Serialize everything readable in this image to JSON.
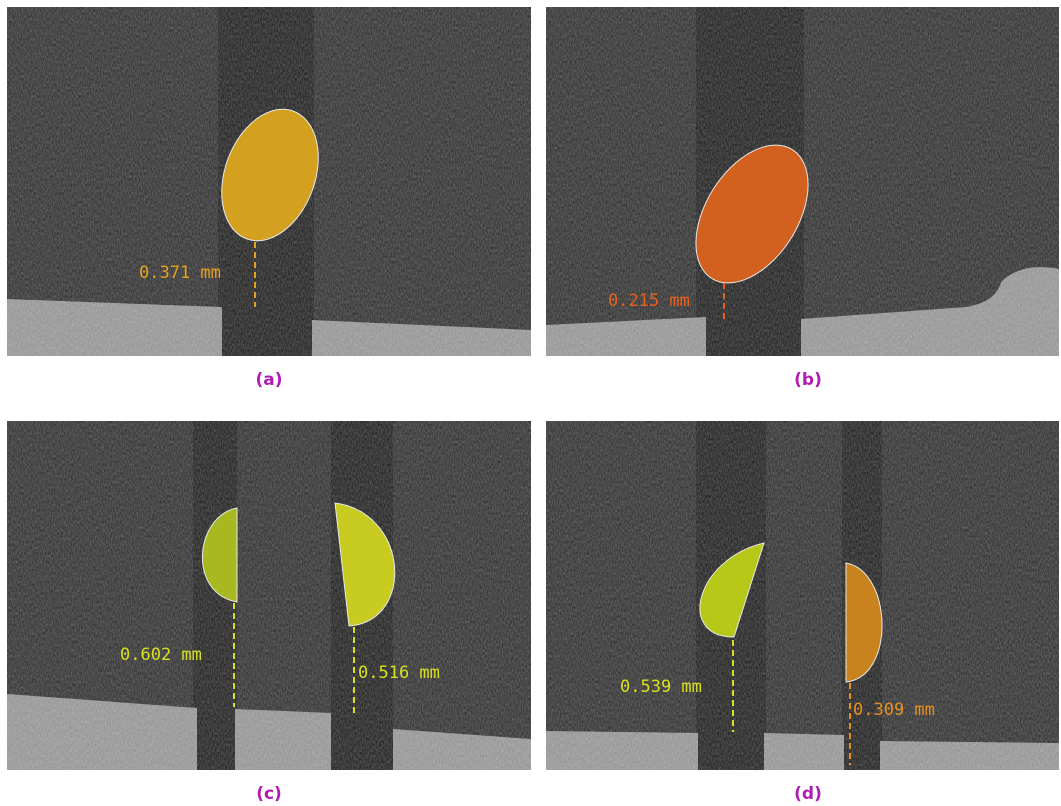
{
  "panels": [
    {
      "caption": "(a)",
      "measurements": [
        "0.371 mm"
      ]
    },
    {
      "caption": "(b)",
      "measurements": [
        "0.215 mm"
      ]
    },
    {
      "caption": "(c)",
      "measurements": [
        "0.602 mm",
        "0.516 mm"
      ]
    },
    {
      "caption": "(d)",
      "measurements": [
        "0.539 mm",
        "0.309 mm"
      ]
    }
  ]
}
